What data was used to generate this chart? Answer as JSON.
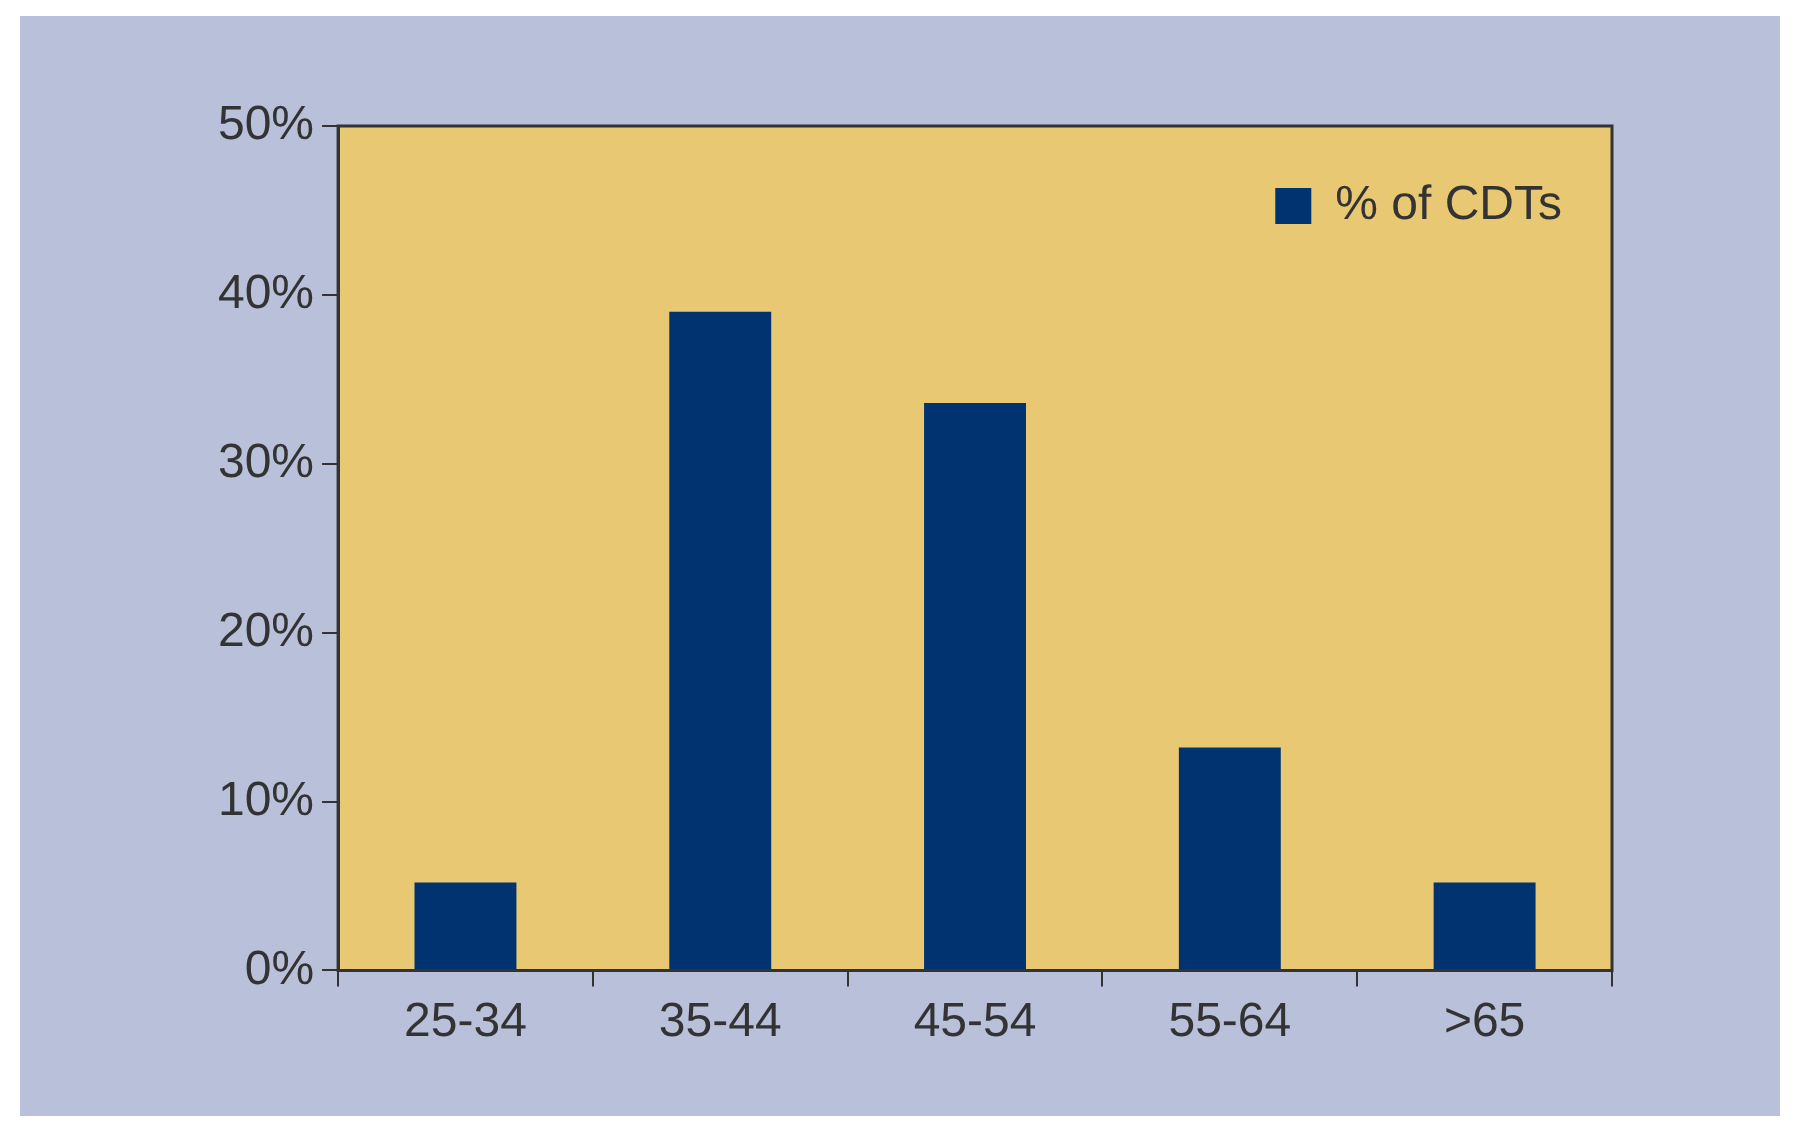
{
  "chart_data": {
    "type": "bar",
    "categories": [
      "25-34",
      "35-44",
      "45-54",
      "55-64",
      ">65"
    ],
    "series": [
      {
        "name": "% of CDTs",
        "color": "#003370",
        "values": [
          5.2,
          39,
          33.6,
          13.2,
          5.2
        ]
      }
    ],
    "ylim": [
      0,
      50
    ],
    "yticks": [
      {
        "value": 0,
        "label": "0%"
      },
      {
        "value": 10,
        "label": "10%"
      },
      {
        "value": 20,
        "label": "20%"
      },
      {
        "value": 30,
        "label": "30%"
      },
      {
        "value": 40,
        "label": "40%"
      },
      {
        "value": 50,
        "label": "50%"
      }
    ],
    "legend": "top right"
  }
}
